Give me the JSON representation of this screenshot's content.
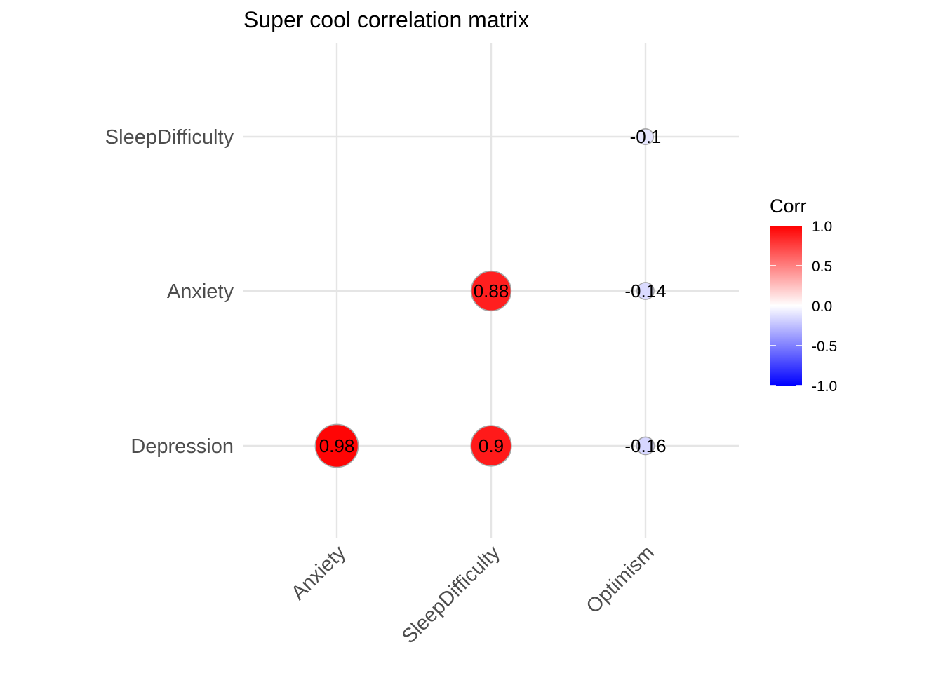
{
  "chart_data": {
    "type": "scatter",
    "subtype": "correlation-matrix",
    "title": "Super cool correlation matrix",
    "x_categories": [
      "Anxiety",
      "SleepDifficulty",
      "Optimism"
    ],
    "y_categories": [
      "Depression",
      "Anxiety",
      "SleepDifficulty"
    ],
    "cells": [
      {
        "x": "Anxiety",
        "y": "Depression",
        "value": 0.98,
        "label": "0.98"
      },
      {
        "x": "SleepDifficulty",
        "y": "Depression",
        "value": 0.9,
        "label": "0.9"
      },
      {
        "x": "Optimism",
        "y": "Depression",
        "value": -0.16,
        "label": "-0.16"
      },
      {
        "x": "SleepDifficulty",
        "y": "Anxiety",
        "value": 0.88,
        "label": "0.88"
      },
      {
        "x": "Optimism",
        "y": "Anxiety",
        "value": -0.14,
        "label": "-0.14"
      },
      {
        "x": "Optimism",
        "y": "SleepDifficulty",
        "value": -0.1,
        "label": "-0.1"
      }
    ],
    "legend": {
      "title": "Corr",
      "position": "right",
      "range": [
        -1,
        1
      ],
      "ticks": [
        1.0,
        0.5,
        0.0,
        -0.5,
        -1.0
      ],
      "tick_labels": [
        "1.0",
        "0.5",
        "0.0",
        "-0.5",
        "-1.0"
      ],
      "colors": {
        "low": "#0000ff",
        "mid": "#ffffff",
        "high": "#ff0000"
      }
    },
    "grid": true
  }
}
